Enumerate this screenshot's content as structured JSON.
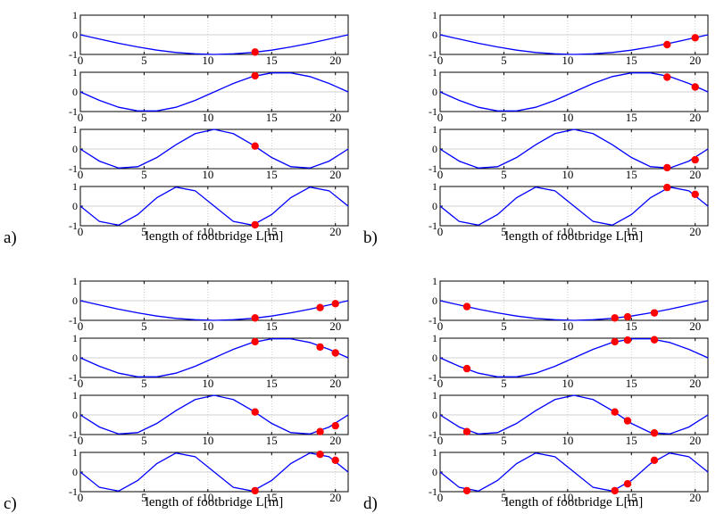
{
  "figure": {
    "x_ticks": [
      0,
      5,
      10,
      15,
      20
    ],
    "y_ticks": [
      1,
      0,
      -1
    ],
    "xlim": [
      0,
      21
    ],
    "ylim": [
      -1,
      1
    ],
    "xlabel": "length of footbridge L[m]",
    "line_color": "#0000ff",
    "marker_color": "#ff0000",
    "grid_color": "#c0c0c0"
  },
  "chart_data": [
    {
      "panel": "a)",
      "type": "line",
      "xlabel": "length of footbridge L[m]",
      "xlim": [
        0,
        21
      ],
      "ylim": [
        -1,
        1
      ],
      "series": [
        {
          "mode": 1,
          "x": [
            0,
            1.5,
            3,
            4.5,
            6,
            7.5,
            9,
            10.5,
            12,
            13.5,
            15,
            16.5,
            18,
            19.5,
            21
          ],
          "y": [
            0,
            -0.22,
            -0.43,
            -0.62,
            -0.78,
            -0.9,
            -0.97,
            -1,
            -0.97,
            -0.9,
            -0.78,
            -0.62,
            -0.43,
            -0.22,
            0
          ],
          "markers": [
            [
              13.7,
              -0.88
            ]
          ]
        },
        {
          "mode": 2,
          "x": [
            0,
            1.5,
            3,
            4.5,
            6,
            7.5,
            9,
            10.5,
            12,
            13.5,
            15,
            16.5,
            18,
            19.5,
            21
          ],
          "y": [
            0,
            -0.43,
            -0.78,
            -0.97,
            -0.97,
            -0.78,
            -0.43,
            0,
            0.43,
            0.78,
            0.97,
            0.97,
            0.78,
            0.43,
            0
          ],
          "markers": [
            [
              13.7,
              0.82
            ]
          ]
        },
        {
          "mode": 3,
          "x": [
            0,
            1.5,
            3,
            4.5,
            6,
            7.5,
            9,
            10.5,
            12,
            13.5,
            15,
            16.5,
            18,
            19.5,
            21
          ],
          "y": [
            0,
            -0.62,
            -0.97,
            -0.9,
            -0.43,
            0.22,
            0.78,
            1,
            0.78,
            0.22,
            -0.43,
            -0.9,
            -0.97,
            -0.62,
            0
          ],
          "markers": [
            [
              13.7,
              0.15
            ]
          ]
        },
        {
          "mode": 4,
          "x": [
            0,
            1.5,
            3,
            4.5,
            6,
            7.5,
            9,
            10.5,
            12,
            13.5,
            15,
            16.5,
            18,
            19.5,
            21
          ],
          "y": [
            0,
            -0.78,
            -0.97,
            -0.43,
            0.43,
            0.97,
            0.78,
            0,
            -0.78,
            -0.97,
            -0.43,
            0.43,
            0.97,
            0.78,
            0
          ],
          "markers": [
            [
              13.7,
              -0.95
            ]
          ]
        }
      ]
    },
    {
      "panel": "b)",
      "type": "line",
      "xlabel": "length of footbridge L[m]",
      "xlim": [
        0,
        21
      ],
      "ylim": [
        -1,
        1
      ],
      "series": [
        {
          "mode": 1,
          "x": [
            0,
            1.5,
            3,
            4.5,
            6,
            7.5,
            9,
            10.5,
            12,
            13.5,
            15,
            16.5,
            18,
            19.5,
            21
          ],
          "y": [
            0,
            -0.22,
            -0.43,
            -0.62,
            -0.78,
            -0.9,
            -0.97,
            -1,
            -0.97,
            -0.9,
            -0.78,
            -0.62,
            -0.43,
            -0.22,
            0
          ],
          "markers": [
            [
              17.8,
              -0.5
            ],
            [
              20,
              -0.15
            ]
          ]
        },
        {
          "mode": 2,
          "x": [
            0,
            1.5,
            3,
            4.5,
            6,
            7.5,
            9,
            10.5,
            12,
            13.5,
            15,
            16.5,
            18,
            19.5,
            21
          ],
          "y": [
            0,
            -0.43,
            -0.78,
            -0.97,
            -0.97,
            -0.78,
            -0.43,
            0,
            0.43,
            0.78,
            0.97,
            0.97,
            0.78,
            0.43,
            0
          ],
          "markers": [
            [
              17.8,
              0.75
            ],
            [
              20,
              0.25
            ]
          ]
        },
        {
          "mode": 3,
          "x": [
            0,
            1.5,
            3,
            4.5,
            6,
            7.5,
            9,
            10.5,
            12,
            13.5,
            15,
            16.5,
            18,
            19.5,
            21
          ],
          "y": [
            0,
            -0.62,
            -0.97,
            -0.9,
            -0.43,
            0.22,
            0.78,
            1,
            0.78,
            0.22,
            -0.43,
            -0.9,
            -0.97,
            -0.62,
            0
          ],
          "markers": [
            [
              17.8,
              -0.95
            ],
            [
              20,
              -0.55
            ]
          ]
        },
        {
          "mode": 4,
          "x": [
            0,
            1.5,
            3,
            4.5,
            6,
            7.5,
            9,
            10.5,
            12,
            13.5,
            15,
            16.5,
            18,
            19.5,
            21
          ],
          "y": [
            0,
            -0.78,
            -0.97,
            -0.43,
            0.43,
            0.97,
            0.78,
            0,
            -0.78,
            -0.97,
            -0.43,
            0.43,
            0.97,
            0.78,
            0
          ],
          "markers": [
            [
              17.8,
              0.95
            ],
            [
              20,
              0.6
            ]
          ]
        }
      ]
    },
    {
      "panel": "c)",
      "type": "line",
      "xlabel": "length of footbridge L[m]",
      "xlim": [
        0,
        21
      ],
      "ylim": [
        -1,
        1
      ],
      "series": [
        {
          "mode": 1,
          "x": [
            0,
            1.5,
            3,
            4.5,
            6,
            7.5,
            9,
            10.5,
            12,
            13.5,
            15,
            16.5,
            18,
            19.5,
            21
          ],
          "y": [
            0,
            -0.22,
            -0.43,
            -0.62,
            -0.78,
            -0.9,
            -0.97,
            -1,
            -0.97,
            -0.9,
            -0.78,
            -0.62,
            -0.43,
            -0.22,
            0
          ],
          "markers": [
            [
              13.7,
              -0.88
            ],
            [
              18.8,
              -0.35
            ],
            [
              20,
              -0.15
            ]
          ]
        },
        {
          "mode": 2,
          "x": [
            0,
            1.5,
            3,
            4.5,
            6,
            7.5,
            9,
            10.5,
            12,
            13.5,
            15,
            16.5,
            18,
            19.5,
            21
          ],
          "y": [
            0,
            -0.43,
            -0.78,
            -0.97,
            -0.97,
            -0.78,
            -0.43,
            0,
            0.43,
            0.78,
            0.97,
            0.97,
            0.78,
            0.43,
            0
          ],
          "markers": [
            [
              13.7,
              0.82
            ],
            [
              18.8,
              0.55
            ],
            [
              20,
              0.25
            ]
          ]
        },
        {
          "mode": 3,
          "x": [
            0,
            1.5,
            3,
            4.5,
            6,
            7.5,
            9,
            10.5,
            12,
            13.5,
            15,
            16.5,
            18,
            19.5,
            21
          ],
          "y": [
            0,
            -0.62,
            -0.97,
            -0.9,
            -0.43,
            0.22,
            0.78,
            1,
            0.78,
            0.22,
            -0.43,
            -0.9,
            -0.97,
            -0.62,
            0
          ],
          "markers": [
            [
              13.7,
              0.15
            ],
            [
              18.8,
              -0.85
            ],
            [
              20,
              -0.55
            ]
          ]
        },
        {
          "mode": 4,
          "x": [
            0,
            1.5,
            3,
            4.5,
            6,
            7.5,
            9,
            10.5,
            12,
            13.5,
            15,
            16.5,
            18,
            19.5,
            21
          ],
          "y": [
            0,
            -0.78,
            -0.97,
            -0.43,
            0.43,
            0.97,
            0.78,
            0,
            -0.78,
            -0.97,
            -0.43,
            0.43,
            0.97,
            0.78,
            0
          ],
          "markers": [
            [
              13.7,
              -0.95
            ],
            [
              18.8,
              0.9
            ],
            [
              20,
              0.6
            ]
          ]
        }
      ]
    },
    {
      "panel": "d)",
      "type": "line",
      "xlabel": "length of footbridge L[m]",
      "xlim": [
        0,
        21
      ],
      "ylim": [
        -1,
        1
      ],
      "series": [
        {
          "mode": 1,
          "x": [
            0,
            1.5,
            3,
            4.5,
            6,
            7.5,
            9,
            10.5,
            12,
            13.5,
            15,
            16.5,
            18,
            19.5,
            21
          ],
          "y": [
            0,
            -0.22,
            -0.43,
            -0.62,
            -0.78,
            -0.9,
            -0.97,
            -1,
            -0.97,
            -0.9,
            -0.78,
            -0.62,
            -0.43,
            -0.22,
            0
          ],
          "markers": [
            [
              2.1,
              -0.3
            ],
            [
              13.7,
              -0.88
            ],
            [
              14.7,
              -0.82
            ],
            [
              16.8,
              -0.62
            ]
          ]
        },
        {
          "mode": 2,
          "x": [
            0,
            1.5,
            3,
            4.5,
            6,
            7.5,
            9,
            10.5,
            12,
            13.5,
            15,
            16.5,
            18,
            19.5,
            21
          ],
          "y": [
            0,
            -0.43,
            -0.78,
            -0.97,
            -0.97,
            -0.78,
            -0.43,
            0,
            0.43,
            0.78,
            0.97,
            0.97,
            0.78,
            0.43,
            0
          ],
          "markers": [
            [
              2.1,
              -0.55
            ],
            [
              13.7,
              0.82
            ],
            [
              14.7,
              0.9
            ],
            [
              16.8,
              0.92
            ]
          ]
        },
        {
          "mode": 3,
          "x": [
            0,
            1.5,
            3,
            4.5,
            6,
            7.5,
            9,
            10.5,
            12,
            13.5,
            15,
            16.5,
            18,
            19.5,
            21
          ],
          "y": [
            0,
            -0.62,
            -0.97,
            -0.9,
            -0.43,
            0.22,
            0.78,
            1,
            0.78,
            0.22,
            -0.43,
            -0.9,
            -0.97,
            -0.62,
            0
          ],
          "markers": [
            [
              2.1,
              -0.85
            ],
            [
              13.7,
              0.15
            ],
            [
              14.7,
              -0.3
            ],
            [
              16.8,
              -0.92
            ]
          ]
        },
        {
          "mode": 4,
          "x": [
            0,
            1.5,
            3,
            4.5,
            6,
            7.5,
            9,
            10.5,
            12,
            13.5,
            15,
            16.5,
            18,
            19.5,
            21
          ],
          "y": [
            0,
            -0.78,
            -0.97,
            -0.43,
            0.43,
            0.97,
            0.78,
            0,
            -0.78,
            -0.97,
            -0.43,
            0.43,
            0.97,
            0.78,
            0
          ],
          "markers": [
            [
              2.1,
              -0.95
            ],
            [
              13.7,
              -0.95
            ],
            [
              14.7,
              -0.6
            ],
            [
              16.8,
              0.6
            ]
          ]
        }
      ]
    }
  ]
}
